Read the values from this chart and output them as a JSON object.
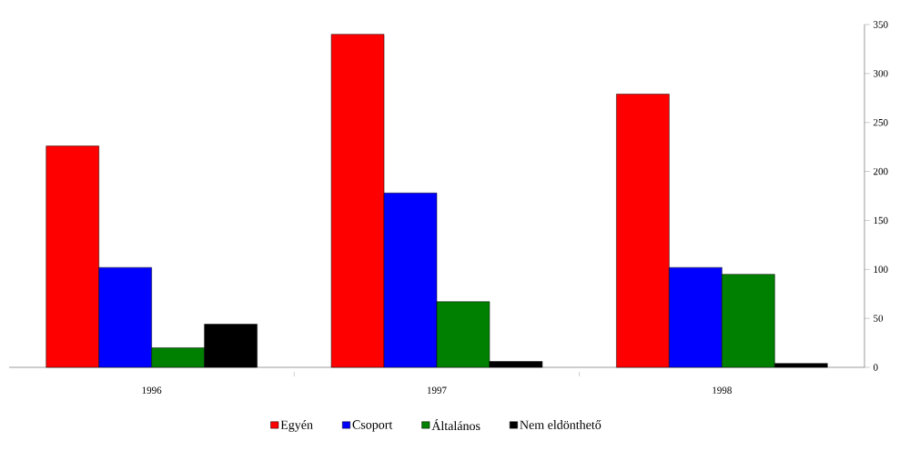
{
  "chart_data": {
    "type": "bar",
    "categories": [
      "1996",
      "1997",
      "1998"
    ],
    "series": [
      {
        "name": "Egyén",
        "color": "#ff0000",
        "values": [
          226,
          340,
          279
        ]
      },
      {
        "name": "Csoport",
        "color": "#0000ff",
        "values": [
          102,
          178,
          102
        ]
      },
      {
        "name": "Általános",
        "color": "#008000",
        "values": [
          20,
          67,
          95
        ]
      },
      {
        "name": "Nem eldönthető",
        "color": "#000000",
        "values": [
          44,
          6,
          4
        ]
      }
    ],
    "ylim": [
      0,
      350
    ],
    "yticks": [
      0,
      50,
      100,
      150,
      200,
      250,
      300,
      350
    ],
    "legend": "bottom"
  }
}
